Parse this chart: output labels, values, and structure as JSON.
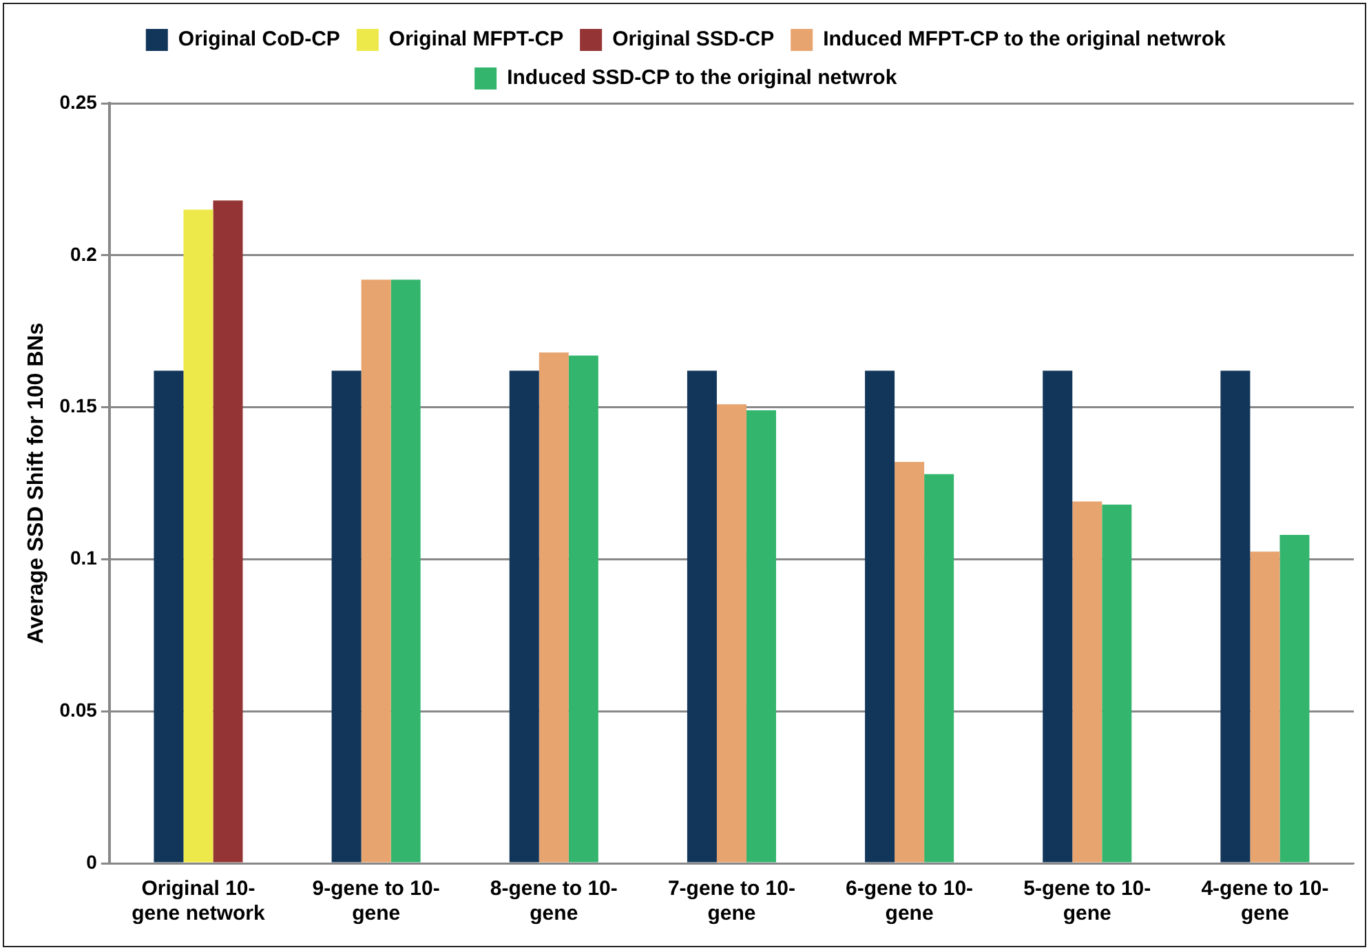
{
  "chart_data": {
    "type": "bar",
    "ylabel": "Average SSD Shift for 100 BNs",
    "categories": [
      "Original 10-gene network",
      "9-gene to 10-gene",
      "8-gene to 10-gene",
      "7-gene to 10-gene",
      "6-gene to 10-gene",
      "5-gene to 10-gene",
      "4-gene to 10-gene"
    ],
    "series": [
      {
        "name": "Original CoD-CP",
        "color": "#12365a",
        "values": [
          0.162,
          0.162,
          0.162,
          0.162,
          0.162,
          0.162,
          0.162
        ]
      },
      {
        "name": "Original MFPT-CP",
        "color": "#ede94a",
        "values": [
          0.215,
          null,
          null,
          null,
          null,
          null,
          null
        ]
      },
      {
        "name": "Original SSD-CP",
        "color": "#943434",
        "values": [
          0.218,
          null,
          null,
          null,
          null,
          null,
          null
        ]
      },
      {
        "name": "Induced MFPT-CP to the original netwrok",
        "color": "#e8a46f",
        "values": [
          null,
          0.192,
          0.168,
          0.151,
          0.132,
          0.119,
          0.1025
        ]
      },
      {
        "name": "Induced SSD-CP to the original netwrok",
        "color": "#33b56e",
        "values": [
          null,
          0.192,
          0.167,
          0.149,
          0.128,
          0.118,
          0.108
        ]
      }
    ],
    "ylim": [
      0,
      0.25
    ],
    "yticks": [
      0,
      0.05,
      0.1,
      0.15,
      0.2,
      0.25
    ],
    "grid": "y",
    "legend": "top"
  }
}
